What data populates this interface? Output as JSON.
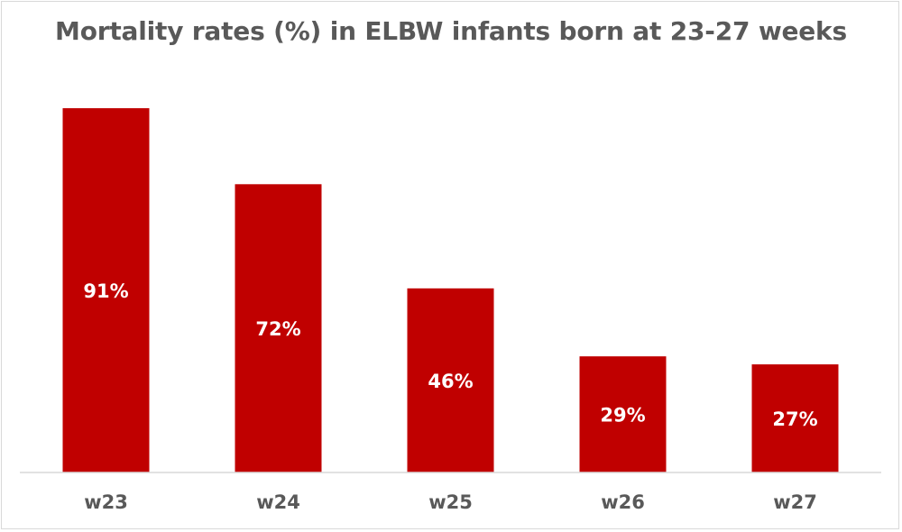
{
  "chart_data": {
    "type": "bar",
    "title": "Mortality rates (%) in ELBW infants born at 23-27 weeks",
    "categories": [
      "w23",
      "w24",
      "w25",
      "w26",
      "w27"
    ],
    "values": [
      91,
      72,
      46,
      29,
      27
    ],
    "data_labels": [
      "91%",
      "72%",
      "46%",
      "29%",
      "27%"
    ],
    "xlabel": "",
    "ylabel": "",
    "ylim": [
      0,
      100
    ],
    "grid": false,
    "legend": "none",
    "bar_color": "#c00000",
    "axis_color": "#d9d9d9",
    "text_color": "#595959"
  }
}
